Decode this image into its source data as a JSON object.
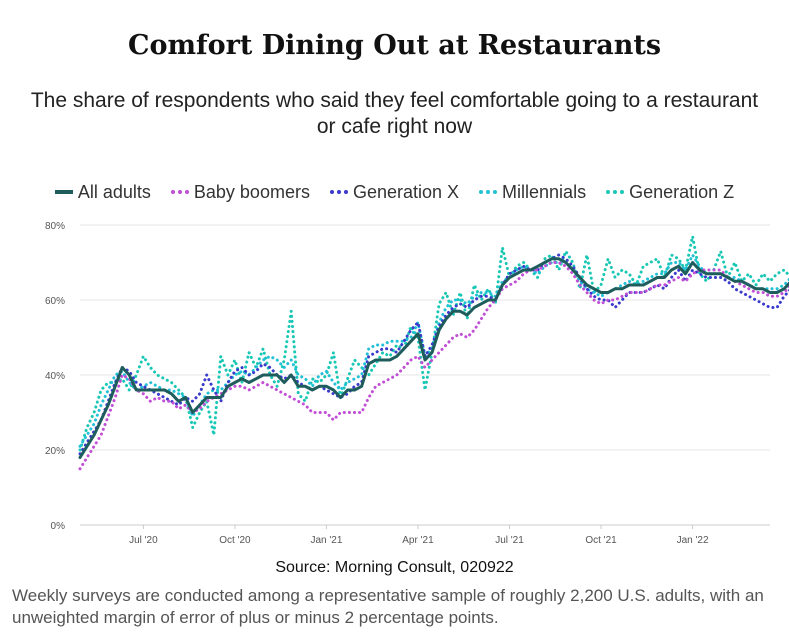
{
  "title": "Comfort Dining Out at Restaurants",
  "subtitle": "The share of respondents who said they feel comfortable going to a restaurant or cafe right now",
  "source": "Source: Morning Consult, 020922",
  "footnote": "Weekly surveys are conducted among a representative sample of roughly 2,200 U.S. adults, with an unweighted margin of error of plus or minus 2 percentage points.",
  "chart_data": {
    "type": "line",
    "title": "Comfort Dining Out at Restaurants",
    "xlabel": "",
    "ylabel": "",
    "ylim": [
      0,
      80
    ],
    "yticks": [
      {
        "value": 0,
        "label": "0%"
      },
      {
        "value": 20,
        "label": "20%"
      },
      {
        "value": 40,
        "label": "40%"
      },
      {
        "value": 60,
        "label": "60%"
      },
      {
        "value": 80,
        "label": "80%"
      }
    ],
    "xlim": [
      0,
      98
    ],
    "xticks": [
      {
        "value": 9,
        "label": "Jul '20"
      },
      {
        "value": 22,
        "label": "Oct '20"
      },
      {
        "value": 35,
        "label": "Jan '21"
      },
      {
        "value": 48,
        "label": "Apr '21"
      },
      {
        "value": 61,
        "label": "Jul '21"
      },
      {
        "value": 74,
        "label": "Oct '21"
      },
      {
        "value": 87,
        "label": "Jan '22"
      }
    ],
    "grid": true,
    "legend_position": "top",
    "series": [
      {
        "name": "All adults",
        "color": "#1f5c5c",
        "style": "solid",
        "values": [
          18,
          21,
          24,
          28,
          32,
          37,
          42,
          40,
          36,
          36,
          36,
          36,
          36,
          35,
          33,
          34,
          30,
          32,
          34,
          34,
          34,
          37,
          38,
          39,
          38,
          39,
          40,
          40,
          40,
          38,
          40,
          37,
          37,
          36,
          37,
          37,
          36,
          34,
          36,
          36,
          37,
          43,
          44,
          44,
          44,
          45,
          47,
          49,
          51,
          44,
          46,
          52,
          55,
          57,
          57,
          56,
          58,
          59,
          60,
          60,
          64,
          66,
          67,
          68,
          68,
          69,
          70,
          71,
          71,
          70,
          68,
          66,
          64,
          63,
          62,
          62,
          63,
          63,
          64,
          64,
          64,
          65,
          66,
          66,
          68,
          69,
          67,
          70,
          68,
          67,
          67,
          67,
          66,
          65,
          65,
          64,
          63,
          63,
          62,
          62,
          63,
          65,
          67
        ]
      },
      {
        "name": "Baby boomers",
        "color": "#c04fd6",
        "style": "dotted",
        "values": [
          15,
          18,
          21,
          24,
          29,
          34,
          40,
          39,
          36,
          35,
          33,
          34,
          33,
          33,
          31,
          32,
          30,
          31,
          33,
          34,
          35,
          36,
          37,
          37,
          36,
          37,
          38,
          37,
          36,
          35,
          34,
          33,
          32,
          30,
          30,
          30,
          28,
          30,
          30,
          30,
          30,
          34,
          37,
          38,
          39,
          40,
          42,
          44,
          45,
          42,
          44,
          46,
          48,
          50,
          51,
          50,
          52,
          55,
          58,
          60,
          63,
          64,
          65,
          67,
          68,
          68,
          69,
          70,
          70,
          69,
          67,
          64,
          62,
          60,
          59,
          60,
          60,
          61,
          62,
          62,
          62,
          63,
          64,
          64,
          65,
          66,
          65,
          67,
          68,
          68,
          68,
          68,
          66,
          65,
          64,
          63,
          62,
          62,
          61,
          61,
          62,
          64,
          66
        ]
      },
      {
        "name": "Generation X",
        "color": "#3a3acc",
        "style": "dotted",
        "values": [
          19,
          22,
          25,
          28,
          33,
          38,
          42,
          41,
          38,
          37,
          36,
          35,
          34,
          33,
          32,
          34,
          33,
          35,
          40,
          36,
          33,
          38,
          41,
          42,
          40,
          41,
          43,
          42,
          40,
          39,
          40,
          38,
          37,
          36,
          37,
          36,
          35,
          34,
          35,
          37,
          38,
          45,
          46,
          47,
          47,
          46,
          49,
          52,
          54,
          45,
          48,
          53,
          56,
          58,
          59,
          58,
          60,
          61,
          61,
          60,
          64,
          67,
          68,
          69,
          68,
          68,
          70,
          71,
          72,
          71,
          69,
          66,
          63,
          61,
          60,
          60,
          58,
          60,
          62,
          62,
          62,
          63,
          64,
          63,
          66,
          68,
          65,
          68,
          67,
          66,
          66,
          66,
          65,
          63,
          62,
          61,
          60,
          59,
          58,
          58,
          61,
          63,
          64
        ]
      },
      {
        "name": "Millennials",
        "color": "#22c1d8",
        "style": "dotted",
        "values": [
          21,
          24,
          27,
          32,
          36,
          40,
          41,
          38,
          36,
          37,
          38,
          37,
          36,
          36,
          35,
          34,
          29,
          32,
          35,
          36,
          36,
          38,
          40,
          41,
          40,
          42,
          44,
          45,
          44,
          42,
          44,
          40,
          39,
          37,
          40,
          41,
          38,
          36,
          38,
          39,
          40,
          47,
          48,
          48,
          49,
          49,
          49,
          50,
          54,
          45,
          47,
          54,
          58,
          60,
          60,
          59,
          61,
          62,
          62,
          61,
          65,
          66,
          68,
          69,
          68,
          67,
          69,
          70,
          70,
          70,
          68,
          65,
          63,
          62,
          61,
          62,
          63,
          64,
          65,
          64,
          65,
          66,
          67,
          67,
          70,
          70,
          68,
          72,
          69,
          67,
          67,
          67,
          66,
          66,
          65,
          64,
          63,
          63,
          63,
          63,
          64,
          66,
          68
        ]
      },
      {
        "name": "Generation Z",
        "color": "#18c7b4",
        "style": "dotted",
        "values": [
          20,
          26,
          30,
          36,
          38,
          38,
          39,
          36,
          40,
          45,
          42,
          40,
          39,
          38,
          36,
          34,
          26,
          30,
          33,
          24,
          45,
          40,
          44,
          38,
          46,
          42,
          47,
          40,
          37,
          44,
          57,
          35,
          33,
          39,
          38,
          40,
          46,
          34,
          39,
          44,
          42,
          40,
          43,
          46,
          45,
          48,
          47,
          53,
          50,
          36,
          46,
          59,
          62,
          56,
          62,
          55,
          64,
          60,
          63,
          59,
          74,
          66,
          69,
          70,
          68,
          66,
          71,
          72,
          68,
          73,
          70,
          63,
          72,
          62,
          64,
          71,
          66,
          68,
          67,
          64,
          69,
          70,
          71,
          66,
          72,
          71,
          68,
          77,
          67,
          65,
          68,
          73,
          66,
          70,
          65,
          67,
          64,
          67,
          65,
          67,
          68,
          66,
          70
        ]
      }
    ]
  }
}
